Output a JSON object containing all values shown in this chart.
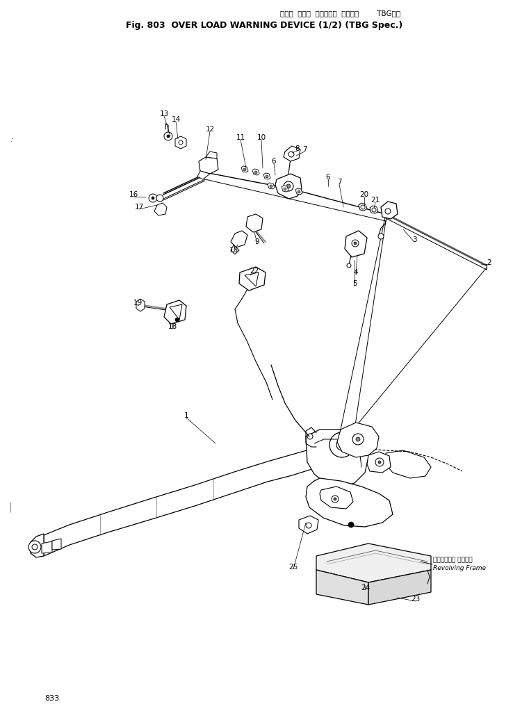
{
  "title_japanese": "オーバ  ロード  ワーニング  デバイス        TBG仕様",
  "title_english": "Fig. 803  OVER LOAD WARNING DEVICE (1/2) (TBG Spec.)",
  "page_number": "833",
  "bg_color": "#ffffff",
  "revolving_frame_jp": "レボルビング フレーム",
  "revolving_frame_en": "Revolving Frame"
}
